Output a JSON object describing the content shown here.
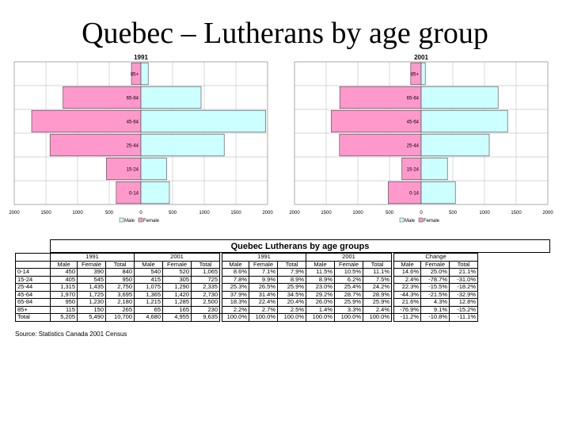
{
  "slide": {
    "title": "Quebec – Lutherans by age group"
  },
  "chart_data": [
    {
      "type": "bar",
      "orientation": "horizontal-population-pyramid",
      "title": "1991",
      "categories": [
        "0-14",
        "15-24",
        "25-44",
        "45-64",
        "65-84",
        "85+"
      ],
      "series": [
        {
          "name": "Male",
          "values": [
            450,
            405,
            1315,
            1970,
            950,
            115
          ]
        },
        {
          "name": "Female",
          "values": [
            390,
            545,
            1435,
            1725,
            1230,
            150
          ]
        }
      ],
      "xticks": [
        "2000",
        "1500",
        "1000",
        "500",
        "0",
        "500",
        "1000",
        "1500",
        "2000"
      ],
      "xlim": [
        -2000,
        2000
      ],
      "legend": "bottom",
      "grid": true
    },
    {
      "type": "bar",
      "orientation": "horizontal-population-pyramid",
      "title": "2001",
      "categories": [
        "0-14",
        "15-24",
        "25-44",
        "45-64",
        "65-84",
        "85+"
      ],
      "series": [
        {
          "name": "Male",
          "values": [
            540,
            415,
            1075,
            1365,
            1215,
            65
          ]
        },
        {
          "name": "Female",
          "values": [
            520,
            305,
            1290,
            1420,
            1285,
            165
          ]
        }
      ],
      "xticks": [
        "2000",
        "1500",
        "1000",
        "500",
        "0",
        "500",
        "1000",
        "1500",
        "2000"
      ],
      "xlim": [
        -2000,
        2000
      ],
      "legend": "bottom",
      "grid": true
    },
    {
      "type": "table",
      "title": "Quebec Lutherans by age groups",
      "group_headers": [
        "1991",
        "2001",
        "1991",
        "2001",
        "Change"
      ],
      "col_headers": [
        "Male",
        "Female",
        "Total",
        "Male",
        "Female",
        "Total",
        "Male",
        "Female",
        "Total",
        "Male",
        "Female",
        "Total",
        "Male",
        "Female",
        "Total"
      ],
      "rows": [
        {
          "label": "0-14",
          "counts": [
            "450",
            "390",
            "840",
            "540",
            "520",
            "1,065"
          ],
          "pct": [
            "8.6%",
            "7.1%",
            "7.9%",
            "11.5%",
            "10.5%",
            "11.1%"
          ],
          "change": [
            "14.6%",
            "25.0%",
            "21.1%"
          ]
        },
        {
          "label": "15-24",
          "counts": [
            "405",
            "545",
            "950",
            "415",
            "305",
            "725"
          ],
          "pct": [
            "7.8%",
            "9.9%",
            "8.9%",
            "8.9%",
            "6.2%",
            "7.5%"
          ],
          "change": [
            "2.4%",
            "-78.7%",
            "-31.0%"
          ]
        },
        {
          "label": "25-44",
          "counts": [
            "1,315",
            "1,435",
            "2,750",
            "1,075",
            "1,290",
            "2,335"
          ],
          "pct": [
            "25.3%",
            "26.5%",
            "25.9%",
            "23.0%",
            "25.4%",
            "24.2%"
          ],
          "change": [
            "22.3%",
            "-15.5%",
            "-18.2%"
          ]
        },
        {
          "label": "45-64",
          "counts": [
            "1,970",
            "1,725",
            "3,695",
            "1,365",
            "1,420",
            "2,730"
          ],
          "pct": [
            "37.9%",
            "31.4%",
            "34.5%",
            "29.2%",
            "28.7%",
            "28.9%"
          ],
          "change": [
            "-44.3%",
            "-21.5%",
            "-32.9%"
          ]
        },
        {
          "label": "65-84",
          "counts": [
            "950",
            "1,230",
            "2,180",
            "1,215",
            "1,285",
            "2,500"
          ],
          "pct": [
            "18.3%",
            "22.4%",
            "20.4%",
            "26.0%",
            "25.9%",
            "25.9%"
          ],
          "change": [
            "21.6%",
            "4.3%",
            "12.8%"
          ]
        },
        {
          "label": "85+",
          "counts": [
            "115",
            "150",
            "265",
            "65",
            "165",
            "230"
          ],
          "pct": [
            "2.2%",
            "2.7%",
            "2.5%",
            "1.4%",
            "3.3%",
            "2.4%"
          ],
          "change": [
            "-76.9%",
            "9.1%",
            "-15.2%"
          ]
        },
        {
          "label": "Total",
          "counts": [
            "5,205",
            "5,490",
            "10,700",
            "4,680",
            "4,955",
            "9,635"
          ],
          "pct": [
            "100.0%",
            "100.0%",
            "100.0%",
            "100.0%",
            "100.0%",
            "100.0%"
          ],
          "change": [
            "-11.2%",
            "-10.8%",
            "-11.1%"
          ]
        }
      ],
      "source": "Source: Statistics Canada 2001 Census"
    }
  ],
  "colors": {
    "male": "#ccffff",
    "female": "#ff99cc",
    "grid": "#c8c8c8"
  }
}
